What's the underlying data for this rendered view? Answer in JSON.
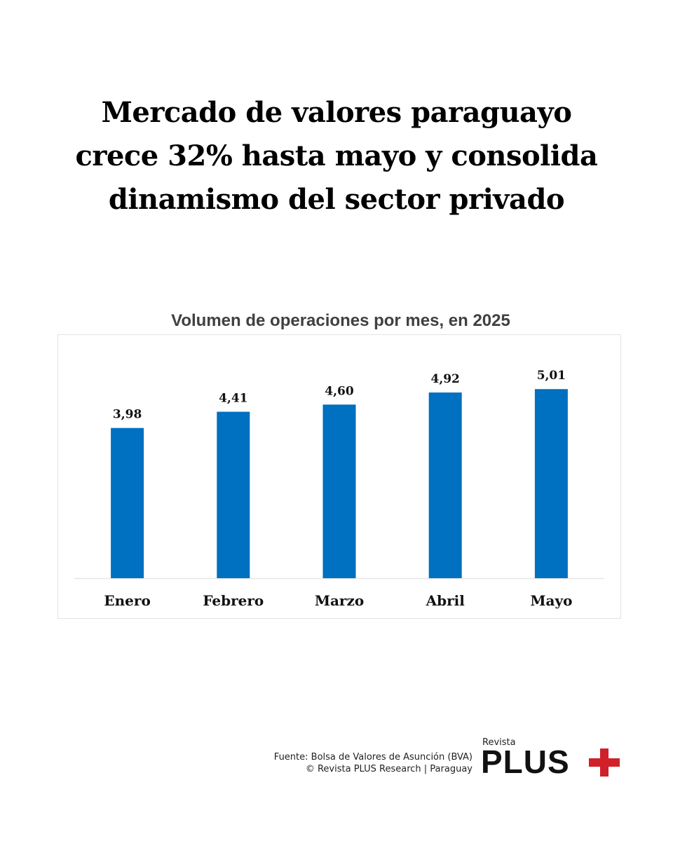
{
  "headline": {
    "lines": [
      "Mercado de valores paraguayo",
      "crece 32% hasta mayo y consolida",
      "dinamismo del sector privado"
    ]
  },
  "chart_data": {
    "type": "bar",
    "title": "Volumen de operaciones por mes, en 2025",
    "categories": [
      "Enero",
      "Febrero",
      "Marzo",
      "Abril",
      "Mayo"
    ],
    "values": [
      3.98,
      4.41,
      4.6,
      4.92,
      5.01
    ],
    "value_labels": [
      "3,98",
      "4,41",
      "4,60",
      "4,92",
      "5,01"
    ],
    "xlabel": "",
    "ylabel": "",
    "ylim": [
      0,
      5.6
    ],
    "grid": false,
    "legend": "none",
    "bar_color": "#0070c0"
  },
  "footer": {
    "source": "Fuente: Bolsa de Valores de Asunción (BVA)",
    "copyright": "© Revista PLUS Research | Paraguay"
  },
  "logo": {
    "small": "Revista",
    "big": "PLUS",
    "accent_color": "#d0202a"
  }
}
